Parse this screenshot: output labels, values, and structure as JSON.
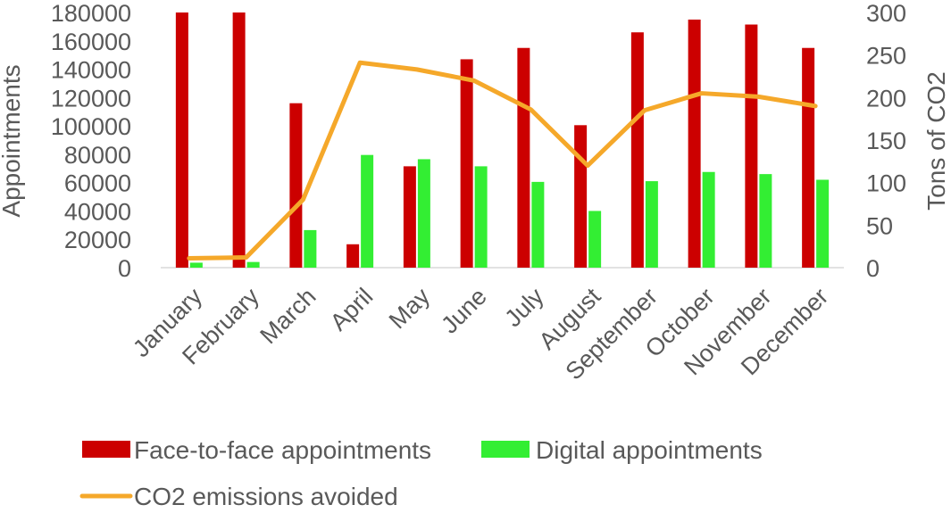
{
  "chart_data": {
    "type": "bar",
    "categories": [
      "January",
      "February",
      "March",
      "April",
      "May",
      "June",
      "July",
      "August",
      "September",
      "October",
      "November",
      "December"
    ],
    "series": [
      {
        "name": "Face-to-face appointments",
        "type": "bar",
        "axis": "left",
        "color": "#cc0000",
        "values": [
          180000,
          180000,
          116000,
          16500,
          71500,
          147000,
          155000,
          100500,
          166000,
          175000,
          171500,
          155000
        ]
      },
      {
        "name": "Digital appointments",
        "type": "bar",
        "axis": "left",
        "color": "#33ee33",
        "values": [
          3500,
          4000,
          26500,
          79500,
          76500,
          71500,
          60500,
          40000,
          61000,
          67500,
          66000,
          62000
        ]
      },
      {
        "name": "CO2 emissions avoided",
        "type": "line",
        "axis": "right",
        "color": "#f5a82a",
        "values": [
          11,
          12,
          80,
          241,
          233,
          220,
          186,
          120,
          185,
          205,
          201,
          190
        ]
      }
    ],
    "ylabel": "Appointments",
    "y2label": "Tons of CO2",
    "ylim": [
      0,
      180000
    ],
    "y2lim": [
      0,
      300
    ],
    "yticks": [
      "0",
      "20000",
      "40000",
      "60000",
      "80000",
      "100000",
      "120000",
      "140000",
      "160000",
      "180000"
    ],
    "y2ticks": [
      "0",
      "50",
      "100",
      "150",
      "200",
      "250",
      "300"
    ],
    "grid": false,
    "legend_position": "bottom"
  }
}
